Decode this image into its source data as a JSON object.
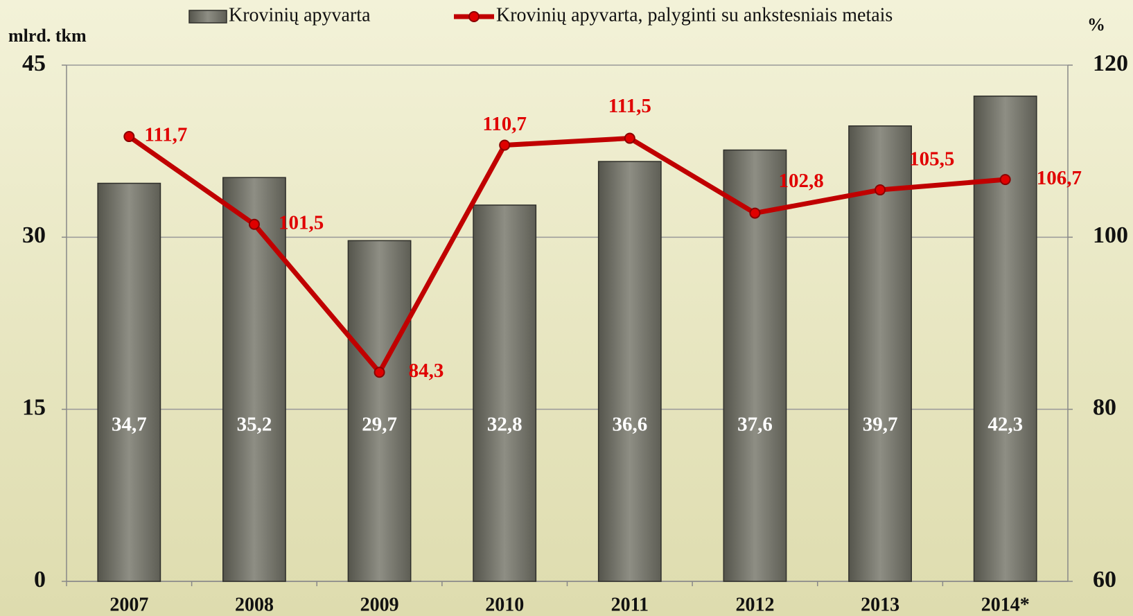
{
  "chart_data": {
    "type": "bar",
    "y_axis_title": "mlrd. tkm",
    "y2_axis_title": "%",
    "categories": [
      "2007",
      "2008",
      "2009",
      "2010",
      "2011",
      "2012",
      "2013",
      "2014*"
    ],
    "ylim": [
      0,
      45
    ],
    "yticks": [
      0,
      15,
      30,
      45
    ],
    "y2lim": [
      60,
      120
    ],
    "y2ticks": [
      60,
      80,
      100,
      120
    ],
    "grid": true,
    "series": [
      {
        "name": "Krovinių apyvarta",
        "type": "bar",
        "color": "#6e6e64",
        "values": [
          34.7,
          35.2,
          29.7,
          32.8,
          36.6,
          37.6,
          39.7,
          42.3
        ],
        "value_labels": [
          "34,7",
          "35,2",
          "29,7",
          "32,8",
          "36,6",
          "37,6",
          "39,7",
          "42,3"
        ]
      },
      {
        "name": "Krovinių apyvarta, palyginti su ankstesniais metais",
        "type": "line",
        "axis": "y2",
        "color": "#c00000",
        "values": [
          111.7,
          101.5,
          84.3,
          110.7,
          111.5,
          102.8,
          105.5,
          106.7
        ],
        "value_labels": [
          "111,7",
          "101,5",
          "84,3",
          "110,7",
          "111,5",
          "102,8",
          "105,5",
          "106,7"
        ]
      }
    ]
  }
}
